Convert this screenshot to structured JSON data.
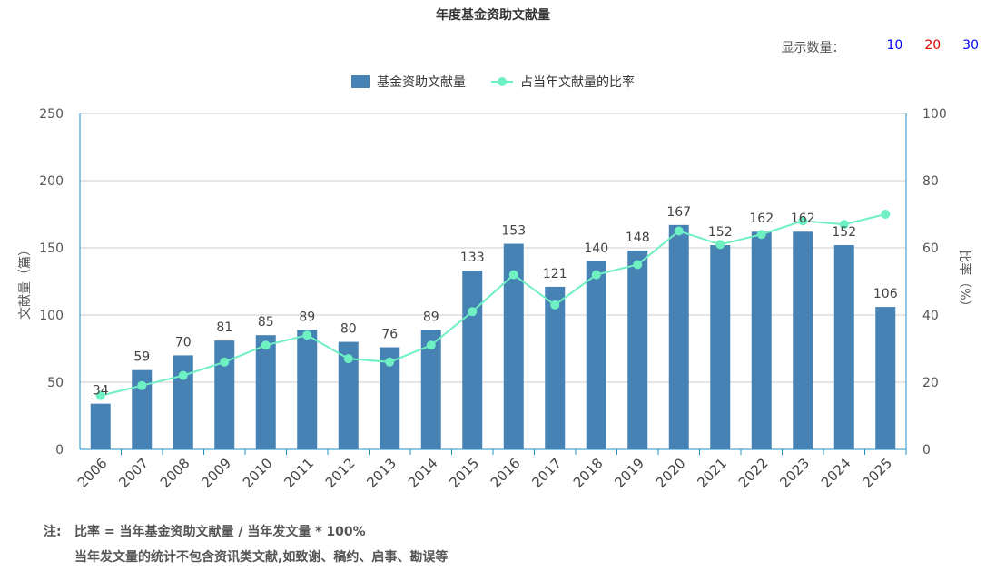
{
  "title": "年度基金资助文献量",
  "display": {
    "label": "显示数量：",
    "options": [
      {
        "label": "10",
        "color": "#0000ff"
      },
      {
        "label": "20",
        "color": "#e00000"
      },
      {
        "label": "30",
        "color": "#0000ff"
      }
    ]
  },
  "legend": {
    "bar_label": "基金资助文献量",
    "line_label": "占当年文献量的比率"
  },
  "colors": {
    "bar": "#4682b4",
    "line": "#6ef0c2",
    "axis": "#1e90c8"
  },
  "chart_data": {
    "type": "bar",
    "categories": [
      "2006",
      "2007",
      "2008",
      "2009",
      "2010",
      "2011",
      "2012",
      "2013",
      "2014",
      "2015",
      "2016",
      "2017",
      "2018",
      "2019",
      "2020",
      "2021",
      "2022",
      "2023",
      "2024",
      "2025"
    ],
    "series": [
      {
        "name": "基金资助文献量",
        "type": "bar",
        "axis": "left",
        "values": [
          34,
          59,
          70,
          81,
          85,
          89,
          80,
          76,
          89,
          133,
          153,
          121,
          140,
          148,
          167,
          152,
          162,
          162,
          152,
          106
        ]
      },
      {
        "name": "占当年文献量的比率",
        "type": "line",
        "axis": "right",
        "values": [
          16,
          19,
          22,
          26,
          31,
          34,
          27,
          26,
          31,
          41,
          52,
          43,
          52,
          55,
          65,
          61,
          64,
          68,
          67,
          70
        ]
      }
    ],
    "ylabel": "文献量（篇）",
    "y2label": "比率（%）",
    "ylim": [
      0,
      250
    ],
    "y2lim": [
      0,
      100
    ],
    "yticks": [
      0,
      50,
      100,
      150,
      200,
      250
    ],
    "y2ticks": [
      0,
      20,
      40,
      60,
      80,
      100
    ],
    "grid": true,
    "legend_position": "top-center"
  },
  "notes": {
    "prefix": "注:",
    "line1": "比率 = 当年基金资助文献量 / 当年发文量 * 100%",
    "line2": "当年发文量的统计不包含资讯类文献,如致谢、稿约、启事、勘误等"
  }
}
